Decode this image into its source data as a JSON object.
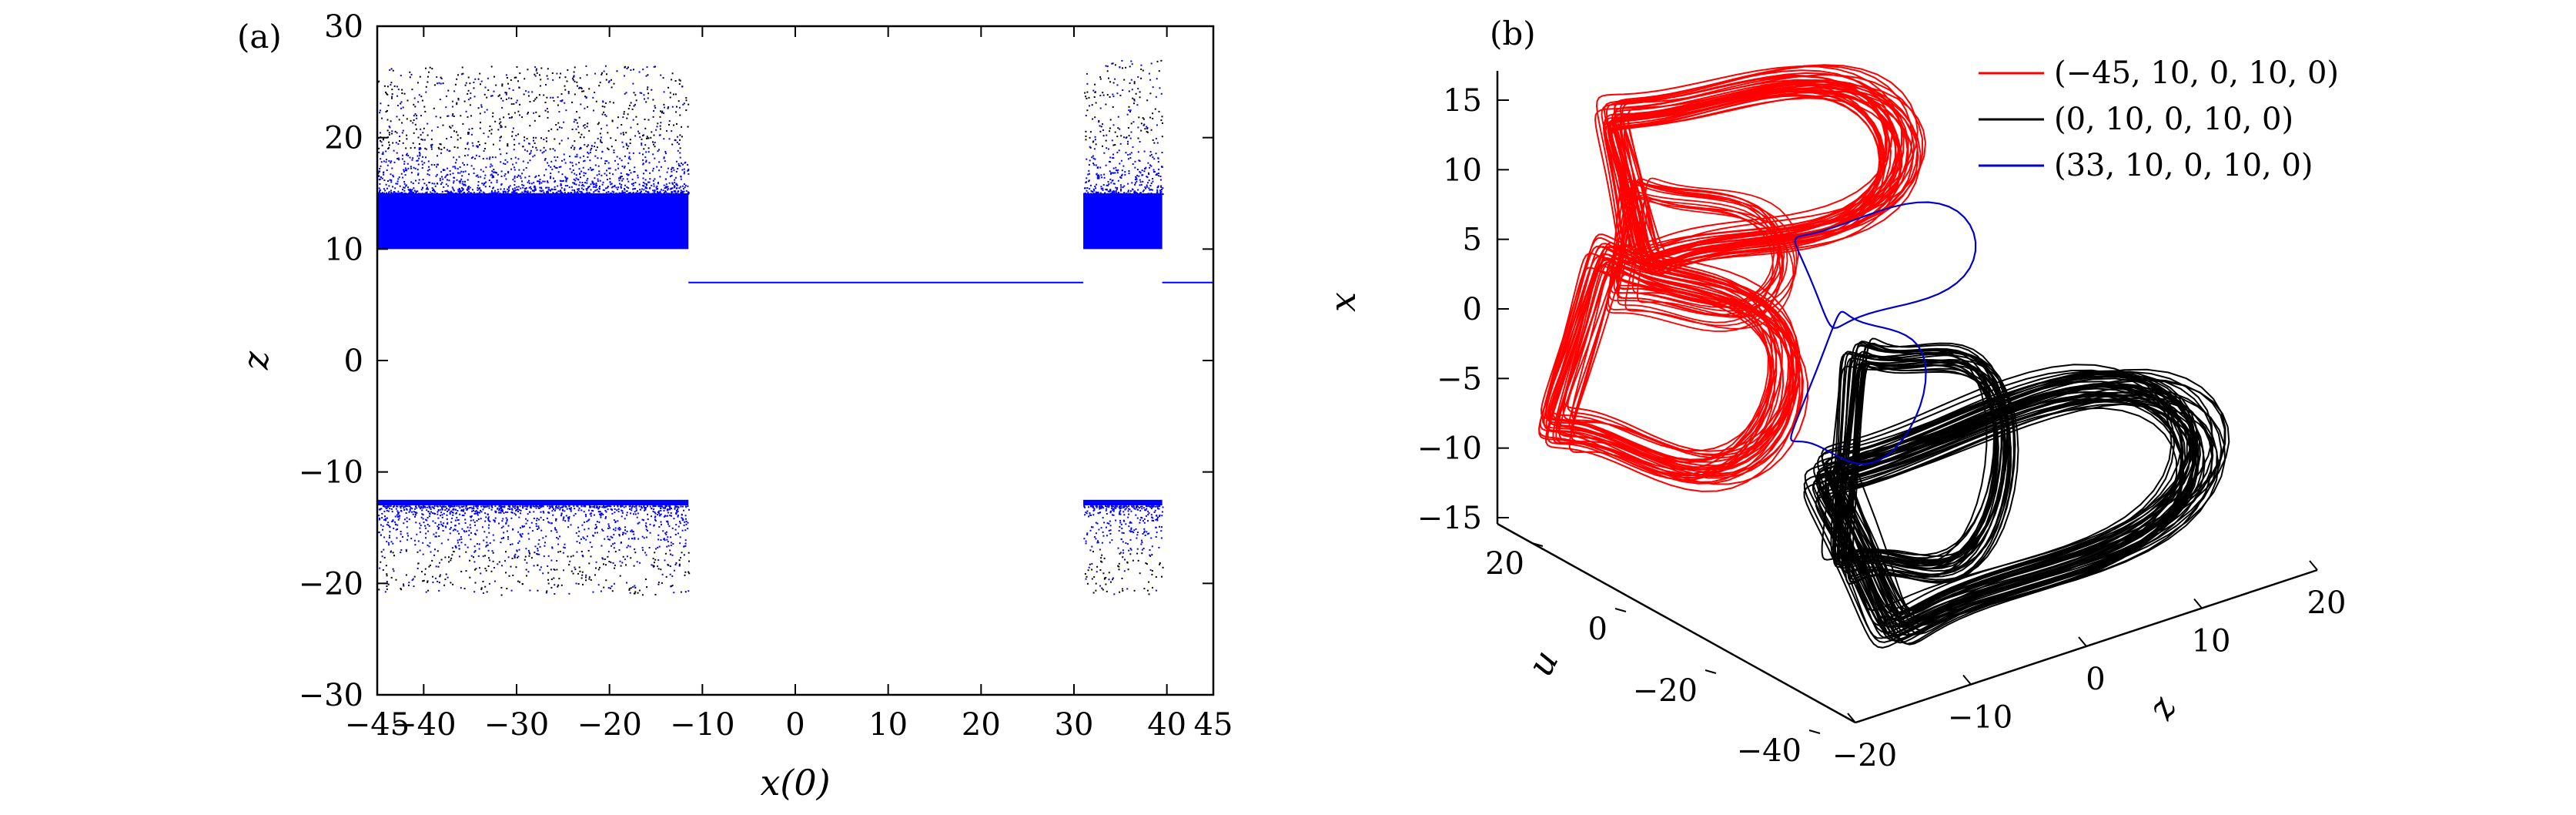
{
  "chart_data": [
    {
      "panel_label": "(a)",
      "type": "scatter",
      "xlabel": "x(0)",
      "ylabel": "z",
      "xlim": [
        -45,
        45
      ],
      "ylim": [
        -30,
        30
      ],
      "xticks": [
        -45,
        -40,
        -30,
        -20,
        -10,
        0,
        10,
        20,
        30,
        40,
        45
      ],
      "yticks": [
        -30,
        -20,
        -10,
        0,
        10,
        20,
        30
      ],
      "point_color": "#0000ff",
      "outlier_color": "#000000",
      "regions": [
        {
          "x_range": [
            -45,
            -11.5
          ],
          "band_upper": [
            10,
            15
          ],
          "band_lower": [
            -12.5,
            -13
          ],
          "upper_max": 26.5,
          "lower_min": -21
        },
        {
          "x_range": [
            31,
            39.5
          ],
          "band_upper": [
            10,
            15
          ],
          "band_lower": [
            -12.5,
            -13
          ],
          "upper_max": 27,
          "lower_min": -21
        }
      ],
      "constant_segments": [
        {
          "x": [
            -11.5,
            31
          ],
          "z": 7
        },
        {
          "x": [
            39.5,
            45
          ],
          "z": 7
        }
      ]
    },
    {
      "panel_label": "(b)",
      "type": "line",
      "projection": "3d",
      "xlabel": "z",
      "ylabel": "u",
      "zlabel": "x",
      "z_ticks": [
        -20,
        -10,
        0,
        10,
        20
      ],
      "u_ticks": [
        -40,
        -20,
        0,
        20
      ],
      "x_ticks": [
        -15,
        -10,
        -5,
        0,
        5,
        10,
        15
      ],
      "legend_position": "top-right",
      "series": [
        {
          "name": "(−45, 10, 0, 10, 0)",
          "color": "#ff0000"
        },
        {
          "name": "(0, 10, 0, 10, 0)",
          "color": "#000000"
        },
        {
          "name": "(33, 10, 0, 10, 0)",
          "color": "#0000c8"
        }
      ]
    }
  ]
}
